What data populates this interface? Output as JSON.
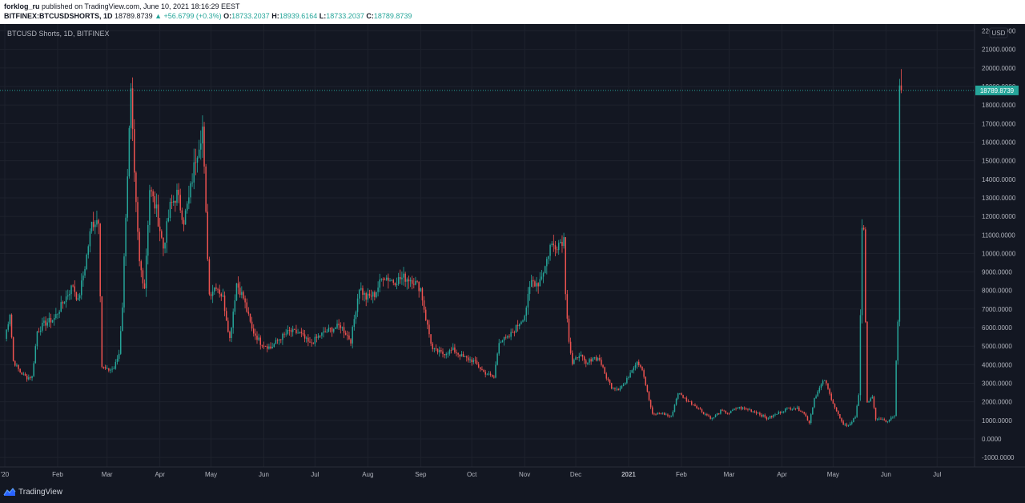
{
  "header": {
    "author": "forklog_ru",
    "published_text": "published on TradingView.com, June 10, 2021 18:16:29 EEST",
    "symbol": "BITFINEX:BTCUSDSHORTS, 1D",
    "last_price": "18789.8739",
    "change_arrow": "▲",
    "change": "+56.6799 (+0.3%)",
    "open_label": "O:",
    "open": "18733.2037",
    "high_label": "H:",
    "high": "18939.6164",
    "low_label": "L:",
    "low": "18733.2037",
    "close_label": "C:",
    "close": "18789.8739"
  },
  "chart_title": "BTCUSD Shorts, 1D, BITFINEX",
  "currency_label": "USD",
  "footer": {
    "brand": "TradingView"
  },
  "colors": {
    "background": "#131722",
    "grid": "#1e222d",
    "up": "#26a69a",
    "down": "#ef5350",
    "price_line": "#26a69a",
    "axis_text": "#b2b5be"
  },
  "chart_data": {
    "type": "candlestick",
    "title": "BTCUSD Shorts, 1D, BITFINEX",
    "y_axis": {
      "ticks": [
        "22000.0000",
        "21000.0000",
        "20000.0000",
        "19000.0000",
        "18000.0000",
        "17000.0000",
        "16000.0000",
        "15000.0000",
        "14000.0000",
        "13000.0000",
        "12000.0000",
        "11000.0000",
        "10000.0000",
        "9000.0000",
        "8000.0000",
        "7000.0000",
        "6000.0000",
        "5000.0000",
        "4000.0000",
        "3000.0000",
        "2000.0000",
        "1000.0000",
        "0.0000",
        "-1000.0000"
      ],
      "range": [
        -1300,
        22100
      ]
    },
    "x_axis": {
      "ticks": [
        "Jan 2020",
        "Feb",
        "Mar",
        "Apr",
        "May",
        "Jun",
        "Jul",
        "Aug",
        "Sep",
        "Oct",
        "Nov",
        "Dec",
        "2021",
        "Feb",
        "Mar",
        "Apr",
        "May",
        "Jun",
        "Jul"
      ],
      "tick_labels": [
        "'20",
        "Feb",
        "Mar",
        "Apr",
        "May",
        "Jun",
        "Jul",
        "Aug",
        "Sep",
        "Oct",
        "Nov",
        "Dec",
        "2021",
        "Feb",
        "Mar",
        "Apr",
        "May",
        "Jun",
        "Jul"
      ],
      "range": [
        "2020-01-01",
        "2021-07-15"
      ]
    },
    "last_close": 18789.8739,
    "close_path": [
      [
        "2020-01-01",
        5400
      ],
      [
        "2020-01-04",
        6800
      ],
      [
        "2020-01-06",
        4200
      ],
      [
        "2020-01-10",
        3600
      ],
      [
        "2020-01-14",
        3300
      ],
      [
        "2020-01-17",
        3350
      ],
      [
        "2020-01-20",
        5800
      ],
      [
        "2020-01-24",
        6200
      ],
      [
        "2020-01-30",
        6500
      ],
      [
        "2020-02-05",
        7500
      ],
      [
        "2020-02-10",
        8300
      ],
      [
        "2020-02-13",
        7400
      ],
      [
        "2020-02-17",
        9300
      ],
      [
        "2020-02-21",
        11600
      ],
      [
        "2020-02-25",
        11900
      ],
      [
        "2020-02-27",
        3900
      ],
      [
        "2020-03-01",
        3700
      ],
      [
        "2020-03-05",
        3800
      ],
      [
        "2020-03-08",
        4600
      ],
      [
        "2020-03-10",
        7200
      ],
      [
        "2020-03-12",
        12200
      ],
      [
        "2020-03-14",
        16500
      ],
      [
        "2020-03-15",
        18500
      ],
      [
        "2020-03-17",
        14000
      ],
      [
        "2020-03-20",
        9500
      ],
      [
        "2020-03-23",
        8200
      ],
      [
        "2020-03-26",
        13500
      ],
      [
        "2020-03-30",
        12300
      ],
      [
        "2020-04-03",
        10300
      ],
      [
        "2020-04-07",
        12500
      ],
      [
        "2020-04-11",
        13200
      ],
      [
        "2020-04-15",
        11800
      ],
      [
        "2020-04-18",
        12900
      ],
      [
        "2020-04-22",
        15200
      ],
      [
        "2020-04-26",
        16800
      ],
      [
        "2020-04-28",
        12000
      ],
      [
        "2020-04-30",
        7800
      ],
      [
        "2020-05-04",
        8300
      ],
      [
        "2020-05-08",
        7600
      ],
      [
        "2020-05-12",
        5400
      ],
      [
        "2020-05-16",
        8400
      ],
      [
        "2020-05-20",
        7600
      ],
      [
        "2020-05-25",
        5900
      ],
      [
        "2020-05-30",
        5200
      ],
      [
        "2020-06-05",
        4900
      ],
      [
        "2020-06-10",
        5400
      ],
      [
        "2020-06-16",
        5800
      ],
      [
        "2020-06-22",
        5700
      ],
      [
        "2020-06-28",
        5100
      ],
      [
        "2020-07-04",
        5600
      ],
      [
        "2020-07-10",
        5900
      ],
      [
        "2020-07-16",
        6100
      ],
      [
        "2020-07-22",
        5300
      ],
      [
        "2020-07-27",
        8200
      ],
      [
        "2020-07-31",
        7600
      ],
      [
        "2020-08-05",
        7800
      ],
      [
        "2020-08-10",
        8800
      ],
      [
        "2020-08-16",
        8500
      ],
      [
        "2020-08-22",
        8700
      ],
      [
        "2020-08-27",
        8600
      ],
      [
        "2020-09-01",
        8100
      ],
      [
        "2020-09-04",
        6500
      ],
      [
        "2020-09-08",
        4800
      ],
      [
        "2020-09-14",
        4600
      ],
      [
        "2020-09-20",
        4800
      ],
      [
        "2020-09-26",
        4400
      ],
      [
        "2020-10-02",
        4200
      ],
      [
        "2020-10-08",
        3600
      ],
      [
        "2020-10-14",
        3300
      ],
      [
        "2020-10-17",
        5300
      ],
      [
        "2020-10-22",
        5400
      ],
      [
        "2020-10-27",
        6000
      ],
      [
        "2020-11-01",
        6700
      ],
      [
        "2020-11-05",
        8500
      ],
      [
        "2020-11-09",
        8400
      ],
      [
        "2020-11-13",
        9300
      ],
      [
        "2020-11-16",
        10400
      ],
      [
        "2020-11-20",
        10500
      ],
      [
        "2020-11-24",
        10800
      ],
      [
        "2020-11-25",
        8000
      ],
      [
        "2020-11-27",
        5300
      ],
      [
        "2020-11-29",
        4000
      ],
      [
        "2020-12-03",
        4600
      ],
      [
        "2020-12-07",
        4000
      ],
      [
        "2020-12-11",
        4400
      ],
      [
        "2020-12-15",
        4300
      ],
      [
        "2020-12-18",
        3500
      ],
      [
        "2020-12-22",
        2800
      ],
      [
        "2020-12-26",
        2700
      ],
      [
        "2020-12-30",
        3000
      ],
      [
        "2021-01-03",
        3800
      ],
      [
        "2021-01-06",
        4200
      ],
      [
        "2021-01-09",
        3800
      ],
      [
        "2021-01-12",
        2500
      ],
      [
        "2021-01-15",
        1300
      ],
      [
        "2021-01-20",
        1400
      ],
      [
        "2021-01-26",
        1200
      ],
      [
        "2021-01-30",
        2500
      ],
      [
        "2021-02-04",
        2100
      ],
      [
        "2021-02-09",
        1800
      ],
      [
        "2021-02-14",
        1400
      ],
      [
        "2021-02-19",
        1100
      ],
      [
        "2021-02-24",
        1500
      ],
      [
        "2021-03-01",
        1400
      ],
      [
        "2021-03-06",
        1700
      ],
      [
        "2021-03-12",
        1600
      ],
      [
        "2021-03-18",
        1400
      ],
      [
        "2021-03-23",
        1100
      ],
      [
        "2021-03-28",
        1300
      ],
      [
        "2021-04-03",
        1600
      ],
      [
        "2021-04-08",
        1700
      ],
      [
        "2021-04-13",
        1500
      ],
      [
        "2021-04-17",
        900
      ],
      [
        "2021-04-20",
        2200
      ],
      [
        "2021-04-24",
        2900
      ],
      [
        "2021-04-26",
        3200
      ],
      [
        "2021-04-29",
        2400
      ],
      [
        "2021-05-03",
        1500
      ],
      [
        "2021-05-07",
        700
      ],
      [
        "2021-05-11",
        800
      ],
      [
        "2021-05-14",
        1200
      ],
      [
        "2021-05-16",
        2400
      ],
      [
        "2021-05-18",
        11100
      ],
      [
        "2021-05-19",
        11000
      ],
      [
        "2021-05-21",
        2000
      ],
      [
        "2021-05-24",
        2200
      ],
      [
        "2021-05-26",
        1100
      ],
      [
        "2021-05-31",
        1000
      ],
      [
        "2021-06-02",
        900
      ],
      [
        "2021-06-04",
        1100
      ],
      [
        "2021-06-06",
        1200
      ],
      [
        "2021-06-07",
        4200
      ],
      [
        "2021-06-08",
        6500
      ],
      [
        "2021-06-09",
        18733
      ],
      [
        "2021-06-10",
        18790
      ]
    ]
  }
}
